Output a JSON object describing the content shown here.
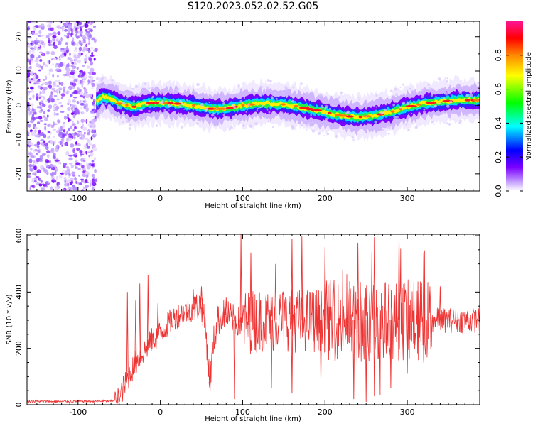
{
  "title": "S120.2023.052.02.52.G05",
  "chart_data": [
    {
      "type": "heatmap",
      "title": "S120.2023.052.02.52.G05",
      "xlabel": "Height of straight line (km)",
      "ylabel": "Frequency (Hz)",
      "xlim": [
        -162,
        388
      ],
      "ylim": [
        -25,
        24.5
      ],
      "x_ticks": [
        -100,
        0,
        100,
        200,
        300
      ],
      "y_ticks": [
        -20,
        -10,
        0,
        10,
        20
      ],
      "colorbar": {
        "label": "Normalized spectral amplitude",
        "ticks": [
          0.0,
          0.2,
          0.4,
          0.6,
          0.8
        ],
        "range": [
          0,
          1
        ],
        "colors": [
          "#ffffff",
          "#c9a6ff",
          "#7a00ff",
          "#0000ff",
          "#00ffff",
          "#00ff00",
          "#ffff00",
          "#ff8800",
          "#ff0000",
          "#ff1493"
        ]
      },
      "noise_region_x": [
        -162,
        -78
      ],
      "ridge": {
        "x": [
          -78,
          -70,
          -60,
          -50,
          -40,
          -30,
          -20,
          0,
          20,
          40,
          60,
          80,
          100,
          120,
          140,
          160,
          180,
          200,
          220,
          240,
          260,
          280,
          300,
          320,
          340,
          360,
          388
        ],
        "y": [
          1.0,
          2.5,
          2.0,
          0.5,
          0.0,
          -0.5,
          0.5,
          0.8,
          0.5,
          0.0,
          -1.0,
          -1.0,
          0.0,
          0.5,
          0.5,
          0.0,
          -1.0,
          -2.0,
          -3.0,
          -3.5,
          -3.0,
          -2.0,
          -0.5,
          0.5,
          1.0,
          1.5,
          1.5
        ]
      }
    },
    {
      "type": "line",
      "xlabel": "Height of straight line (km)",
      "ylabel": "SNR (10 * v/v)",
      "xlim": [
        -162,
        388
      ],
      "ylim": [
        0,
        605
      ],
      "x_ticks": [
        -100,
        0,
        100,
        200,
        300
      ],
      "y_ticks": [
        0,
        200,
        400,
        600
      ],
      "series": [
        {
          "color": "#ee3333",
          "x": [
            -162,
            -140,
            -120,
            -100,
            -80,
            -60,
            -50,
            -45,
            -40,
            -35,
            -30,
            -25,
            -20,
            -15,
            -10,
            -5,
            0,
            5,
            10,
            20,
            30,
            40,
            45,
            50,
            55,
            60,
            65,
            70,
            75,
            80,
            85,
            90,
            100,
            110,
            120,
            130,
            140,
            150,
            160,
            170,
            180,
            190,
            200,
            210,
            220,
            230,
            240,
            250,
            260,
            270,
            280,
            290,
            300,
            310,
            320,
            330,
            340,
            350,
            360,
            370,
            380,
            388
          ],
          "y": [
            12,
            12,
            11,
            12,
            12,
            13,
            20,
            60,
            90,
            120,
            150,
            170,
            190,
            210,
            230,
            240,
            255,
            270,
            290,
            315,
            330,
            340,
            350,
            355,
            270,
            80,
            230,
            295,
            320,
            320,
            310,
            300,
            290,
            295,
            300,
            300,
            300,
            305,
            300,
            300,
            300,
            300,
            300,
            300,
            300,
            300,
            300,
            300,
            300,
            300,
            300,
            300,
            300,
            300,
            300,
            300,
            300,
            300,
            300,
            300,
            300,
            300
          ]
        }
      ],
      "spikes": [
        {
          "x": -40,
          "y": 400
        },
        {
          "x": -30,
          "y": 370
        },
        {
          "x": -25,
          "y": 430
        },
        {
          "x": -15,
          "y": 460
        },
        {
          "x": -3,
          "y": 360
        },
        {
          "x": 40,
          "y": 410
        },
        {
          "x": 50,
          "y": 420
        },
        {
          "x": 70,
          "y": 350
        },
        {
          "x": 80,
          "y": 380
        },
        {
          "x": 98,
          "y": 605
        },
        {
          "x": 110,
          "y": 540
        },
        {
          "x": 140,
          "y": 500
        },
        {
          "x": 160,
          "y": 590
        },
        {
          "x": 172,
          "y": 600
        },
        {
          "x": 200,
          "y": 560
        },
        {
          "x": 240,
          "y": 575
        },
        {
          "x": 260,
          "y": 595
        },
        {
          "x": 290,
          "y": 600
        },
        {
          "x": 320,
          "y": 540
        },
        {
          "x": 340,
          "y": 420
        }
      ],
      "dips": [
        {
          "x": 60,
          "y": 60
        },
        {
          "x": 90,
          "y": 20
        },
        {
          "x": 135,
          "y": 60
        },
        {
          "x": 160,
          "y": 40
        },
        {
          "x": 195,
          "y": 80
        },
        {
          "x": 235,
          "y": 20
        },
        {
          "x": 250,
          "y": 10
        },
        {
          "x": 260,
          "y": 30
        },
        {
          "x": 280,
          "y": 60
        },
        {
          "x": 300,
          "y": 110
        },
        {
          "x": 320,
          "y": 150
        }
      ]
    }
  ]
}
